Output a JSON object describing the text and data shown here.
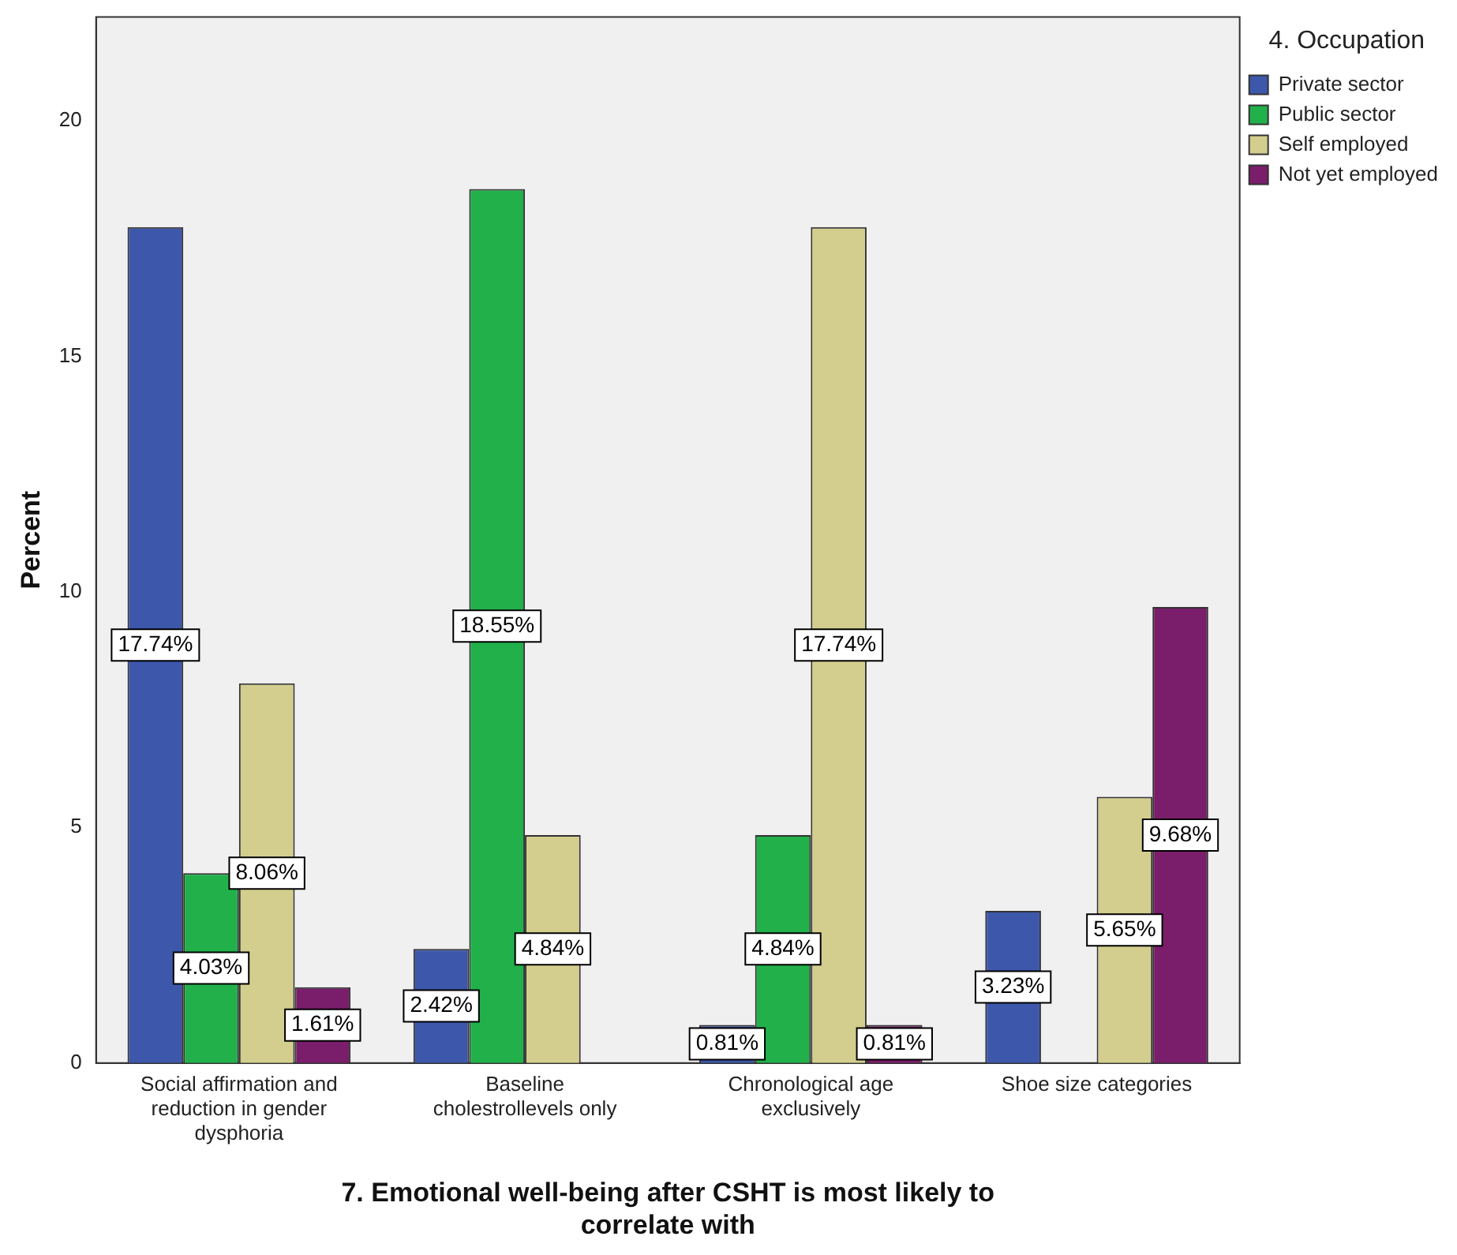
{
  "chart_data": {
    "type": "bar",
    "xlabel": "7. Emotional well-being after CSHT is most likely to correlate with",
    "ylabel": "Percent",
    "legend_title": "4. Occupation",
    "categories": [
      "Social affirmation and reduction in gender dysphoria",
      "Baseline cholestrollevels only",
      "Chronological age exclusively",
      "Shoe size categories"
    ],
    "series": [
      {
        "name": "Private sector",
        "color": "#3d57ab",
        "values": [
          17.74,
          2.42,
          0.81,
          3.23
        ],
        "value_labels": [
          "17.74%",
          "2.42%",
          "0.81%",
          "3.23%"
        ]
      },
      {
        "name": "Public sector",
        "color": "#22b04b",
        "values": [
          4.03,
          18.55,
          4.84,
          null
        ],
        "value_labels": [
          "4.03%",
          "18.55%",
          "4.84%",
          null
        ]
      },
      {
        "name": "Self employed",
        "color": "#d3ce8e",
        "values": [
          8.06,
          4.84,
          17.74,
          5.65
        ],
        "value_labels": [
          "8.06%",
          "4.84%",
          "17.74%",
          "5.65%"
        ]
      },
      {
        "name": "Not yet employed",
        "color": "#7a1d6b",
        "values": [
          1.61,
          null,
          0.81,
          9.68
        ],
        "value_labels": [
          "1.61%",
          null,
          "0.81%",
          "9.68%"
        ]
      }
    ],
    "ylim": [
      0,
      22.2
    ],
    "yticks": [
      0,
      5,
      10,
      15,
      20
    ],
    "grid": false,
    "legend": "top right"
  }
}
